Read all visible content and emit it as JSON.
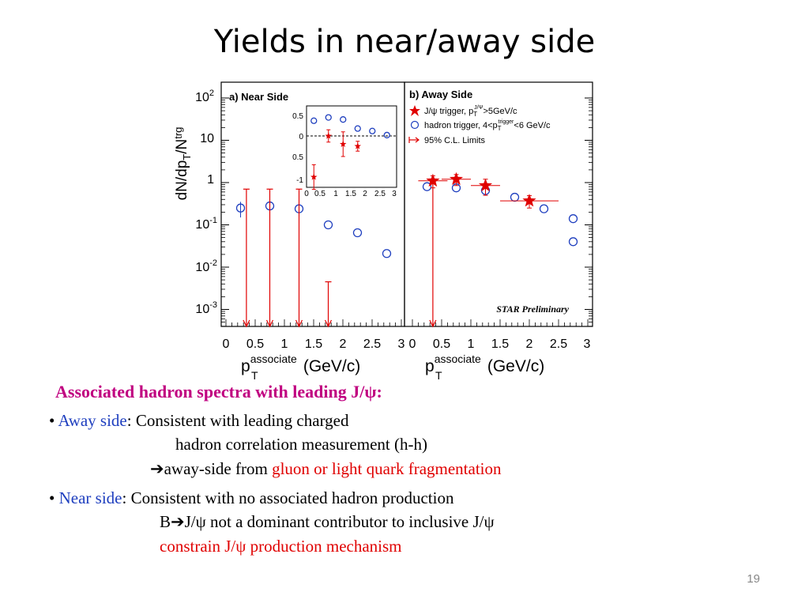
{
  "slide": {
    "title": "Yields in near/away side",
    "page_number": "19"
  },
  "figure": {
    "ylabel": "dN/dp",
    "ylabel_sub": "T",
    "ylabel_tail": "/N",
    "ylabel_trg": "trg",
    "xlabel_main": "p",
    "xlabel_sup": "associate",
    "xlabel_sub": "T",
    "xlabel_units": "(GeV/c)",
    "ytick_labels": [
      {
        "base": "10",
        "exp": "2"
      },
      {
        "base": "10",
        "exp": ""
      },
      {
        "base": "1",
        "exp": ""
      },
      {
        "base": "10",
        "exp": "-1"
      },
      {
        "base": "10",
        "exp": "-2"
      },
      {
        "base": "10",
        "exp": "-3"
      }
    ],
    "xtick_labels": [
      "0",
      "0.5",
      "1",
      "1.5",
      "2",
      "2.5",
      "3"
    ],
    "inset_yticks": [
      "0.5",
      "0",
      "0.5",
      "-1"
    ],
    "inset_xticks": [
      "0",
      "0.5",
      "1",
      "1.5",
      "2",
      "2.5",
      "3"
    ],
    "near_label": "a) Near Side",
    "away_label": "b) Away Side",
    "legend": [
      {
        "text": "J/ψ trigger, p",
        "sub": "T",
        "sup": "J/Ψ",
        "tail": ">5GeV/c"
      },
      {
        "text": "hadron trigger, 4<p",
        "sub": "T",
        "sup": "trigger",
        "tail": "<6 GeV/c"
      },
      {
        "text": "95% C.L. Limits",
        "sub": "",
        "sup": "",
        "tail": ""
      }
    ],
    "preliminary": "STAR Preliminary"
  },
  "chart_data": [
    {
      "type": "scatter",
      "title": "a) Near Side",
      "xlabel": "p_T^associate (GeV/c)",
      "ylabel": "dN/dp_T/N_trg",
      "xlim": [
        0,
        3
      ],
      "ylim": [
        0.0005,
        200
      ],
      "yscale": "log",
      "series": [
        {
          "name": "hadron trigger, 4<p_T^trigger<6 GeV/c",
          "points": [
            {
              "x": 0.25,
              "y": 0.25,
              "err": 0.1
            },
            {
              "x": 0.75,
              "y": 0.28
            },
            {
              "x": 1.25,
              "y": 0.24
            },
            {
              "x": 1.75,
              "y": 0.1
            },
            {
              "x": 2.25,
              "y": 0.065
            },
            {
              "x": 2.75,
              "y": 0.021
            }
          ]
        },
        {
          "name": "95% C.L. Limits",
          "points": [
            {
              "x": 0.35,
              "y": 0.7
            },
            {
              "x": 0.75,
              "y": 0.7
            },
            {
              "x": 1.25,
              "y": 0.7
            },
            {
              "x": 1.75,
              "y": 0.0045
            }
          ]
        }
      ]
    },
    {
      "type": "scatter",
      "title": "b) Away Side",
      "xlabel": "p_T^associate (GeV/c)",
      "ylabel": "dN/dp_T/N_trg",
      "xlim": [
        0,
        3
      ],
      "ylim": [
        0.0005,
        200
      ],
      "yscale": "log",
      "legend_position": "top-right",
      "series": [
        {
          "name": "J/ψ trigger, p_T^J/Ψ>5GeV/c",
          "points": [
            {
              "x": 0.35,
              "y": 1.1,
              "xerr": 0.25,
              "err": 0.35
            },
            {
              "x": 0.75,
              "y": 1.2,
              "xerr": 0.25,
              "err": 0.35
            },
            {
              "x": 1.25,
              "y": 0.85,
              "xerr": 0.25,
              "err": 0.35
            },
            {
              "x": 2.0,
              "y": 0.37,
              "xerr": 0.5,
              "err": 0.12
            }
          ]
        },
        {
          "name": "hadron trigger, 4<p_T^trigger<6 GeV/c",
          "points": [
            {
              "x": 0.25,
              "y": 0.8
            },
            {
              "x": 0.75,
              "y": 0.75
            },
            {
              "x": 1.25,
              "y": 0.65
            },
            {
              "x": 1.75,
              "y": 0.45
            },
            {
              "x": 2.25,
              "y": 0.24
            },
            {
              "x": 2.75,
              "y": 0.14
            },
            {
              "x": 2.75,
              "y": 0.04
            }
          ]
        },
        {
          "name": "95% C.L. Limits",
          "points": [
            {
              "x": 0.35,
              "y": 1.1
            }
          ]
        }
      ]
    },
    {
      "type": "scatter",
      "title": "",
      "xlabel": "",
      "ylabel": "",
      "xlim": [
        0,
        3
      ],
      "ylim": [
        -1.1,
        0.65
      ],
      "series": [
        {
          "name": "J/ψ trigger, p_T^J/Ψ>5GeV/c",
          "points": [
            {
              "x": 0.25,
              "y": -1.0,
              "err": 0.3
            },
            {
              "x": 0.75,
              "y": 0.0,
              "err": 0.15
            },
            {
              "x": 1.25,
              "y": -0.2,
              "err": 0.3
            },
            {
              "x": 1.75,
              "y": -0.25,
              "err": 0.12
            }
          ]
        },
        {
          "name": "hadron trigger, 4<p_T^trigger<6 GeV/c",
          "points": [
            {
              "x": 0.25,
              "y": 0.37
            },
            {
              "x": 0.75,
              "y": 0.45
            },
            {
              "x": 1.25,
              "y": 0.4
            },
            {
              "x": 1.75,
              "y": 0.18
            },
            {
              "x": 2.25,
              "y": 0.12
            },
            {
              "x": 2.75,
              "y": 0.02
            }
          ]
        }
      ]
    }
  ],
  "text": {
    "subheading": "Associated hadron spectra with leading J/ψ:",
    "b1_bullet": "•",
    "b1_label": "Away side",
    "b1_text": ":  Consistent with leading charged",
    "b1_line2": "hadron correlation measurement (h-h)",
    "b1_arrow": "➔",
    "b1_line3a": "away-side from ",
    "b1_line3b": "gluon or light quark fragmentation",
    "b2_bullet": "•",
    "b2_label": "Near  side",
    "b2_text": ":  Consistent with no associated hadron production",
    "b2_line2a": "B",
    "b2_arrow": "➔",
    "b2_line2b": "J/ψ not a dominant contributor to inclusive J/ψ",
    "b2_line3": "constrain J/ψ production mechanism"
  }
}
